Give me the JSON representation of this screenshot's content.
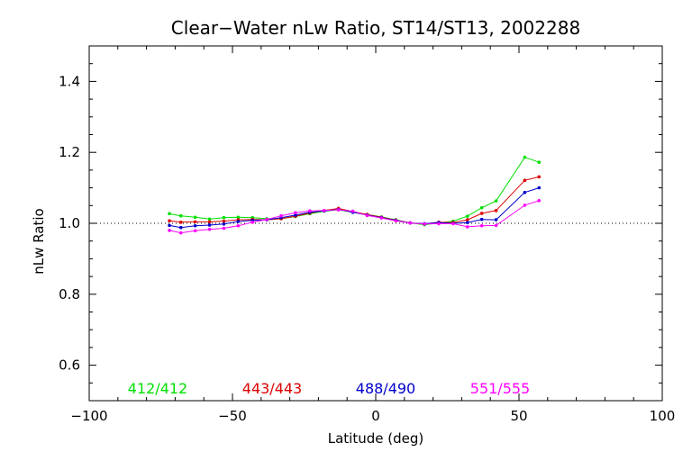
{
  "chart_data": {
    "type": "line",
    "title": "Clear−Water nLw Ratio, ST14/ST13, 2002288",
    "xlabel": "Latitude (deg)",
    "ylabel": "nLw Ratio",
    "xlim": [
      -100,
      100
    ],
    "ylim": [
      0.5,
      1.5
    ],
    "x_ticks": [
      -100,
      -50,
      0,
      50,
      100
    ],
    "x_tick_labels": [
      "−100",
      "−50",
      "0",
      "50",
      "100"
    ],
    "y_ticks": [
      0.6,
      0.8,
      1.0,
      1.2,
      1.4
    ],
    "y_tick_labels": [
      "0.6",
      "0.8",
      "1.0",
      "1.2",
      "1.4"
    ],
    "reference_line": 1.0,
    "grid": false,
    "legend_placement": "bottom",
    "x": [
      -72,
      -68,
      -63,
      -58,
      -53,
      -48,
      -43,
      -38,
      -33,
      -28,
      -23,
      -18,
      -13,
      -8,
      -3,
      2,
      7,
      12,
      17,
      22,
      27,
      32,
      37,
      42,
      52,
      57
    ],
    "series": [
      {
        "name": "412/412",
        "color": "#00e000",
        "values": [
          1.027,
          1.021,
          1.017,
          1.012,
          1.016,
          1.017,
          1.016,
          1.013,
          1.013,
          1.019,
          1.027,
          1.034,
          1.038,
          1.031,
          1.025,
          1.018,
          1.01,
          1.001,
          0.996,
          1.001,
          1.006,
          1.02,
          1.044,
          1.063,
          1.186,
          1.172
        ]
      },
      {
        "name": "443/443",
        "color": "#dd0000",
        "values": [
          1.007,
          1.003,
          1.004,
          1.004,
          1.006,
          1.01,
          1.011,
          1.01,
          1.013,
          1.02,
          1.029,
          1.036,
          1.042,
          1.033,
          1.025,
          1.017,
          1.009,
          1.001,
          0.998,
          1.003,
          1.002,
          1.01,
          1.028,
          1.036,
          1.121,
          1.131
        ]
      },
      {
        "name": "488/490",
        "color": "#0000cc",
        "values": [
          0.994,
          0.988,
          0.993,
          0.995,
          0.998,
          1.005,
          1.008,
          1.01,
          1.016,
          1.023,
          1.031,
          1.035,
          1.039,
          1.031,
          1.023,
          1.016,
          1.008,
          1.001,
          0.999,
          1.002,
          1.0,
          1.002,
          1.011,
          1.01,
          1.087,
          1.1
        ]
      },
      {
        "name": "551/555",
        "color": "#ff00ff",
        "values": [
          0.98,
          0.973,
          0.979,
          0.983,
          0.986,
          0.993,
          1.003,
          1.011,
          1.021,
          1.03,
          1.035,
          1.036,
          1.038,
          1.034,
          1.022,
          1.015,
          1.007,
          1.001,
          0.998,
          0.999,
          0.999,
          0.99,
          0.993,
          0.994,
          1.051,
          1.064
        ]
      }
    ]
  }
}
